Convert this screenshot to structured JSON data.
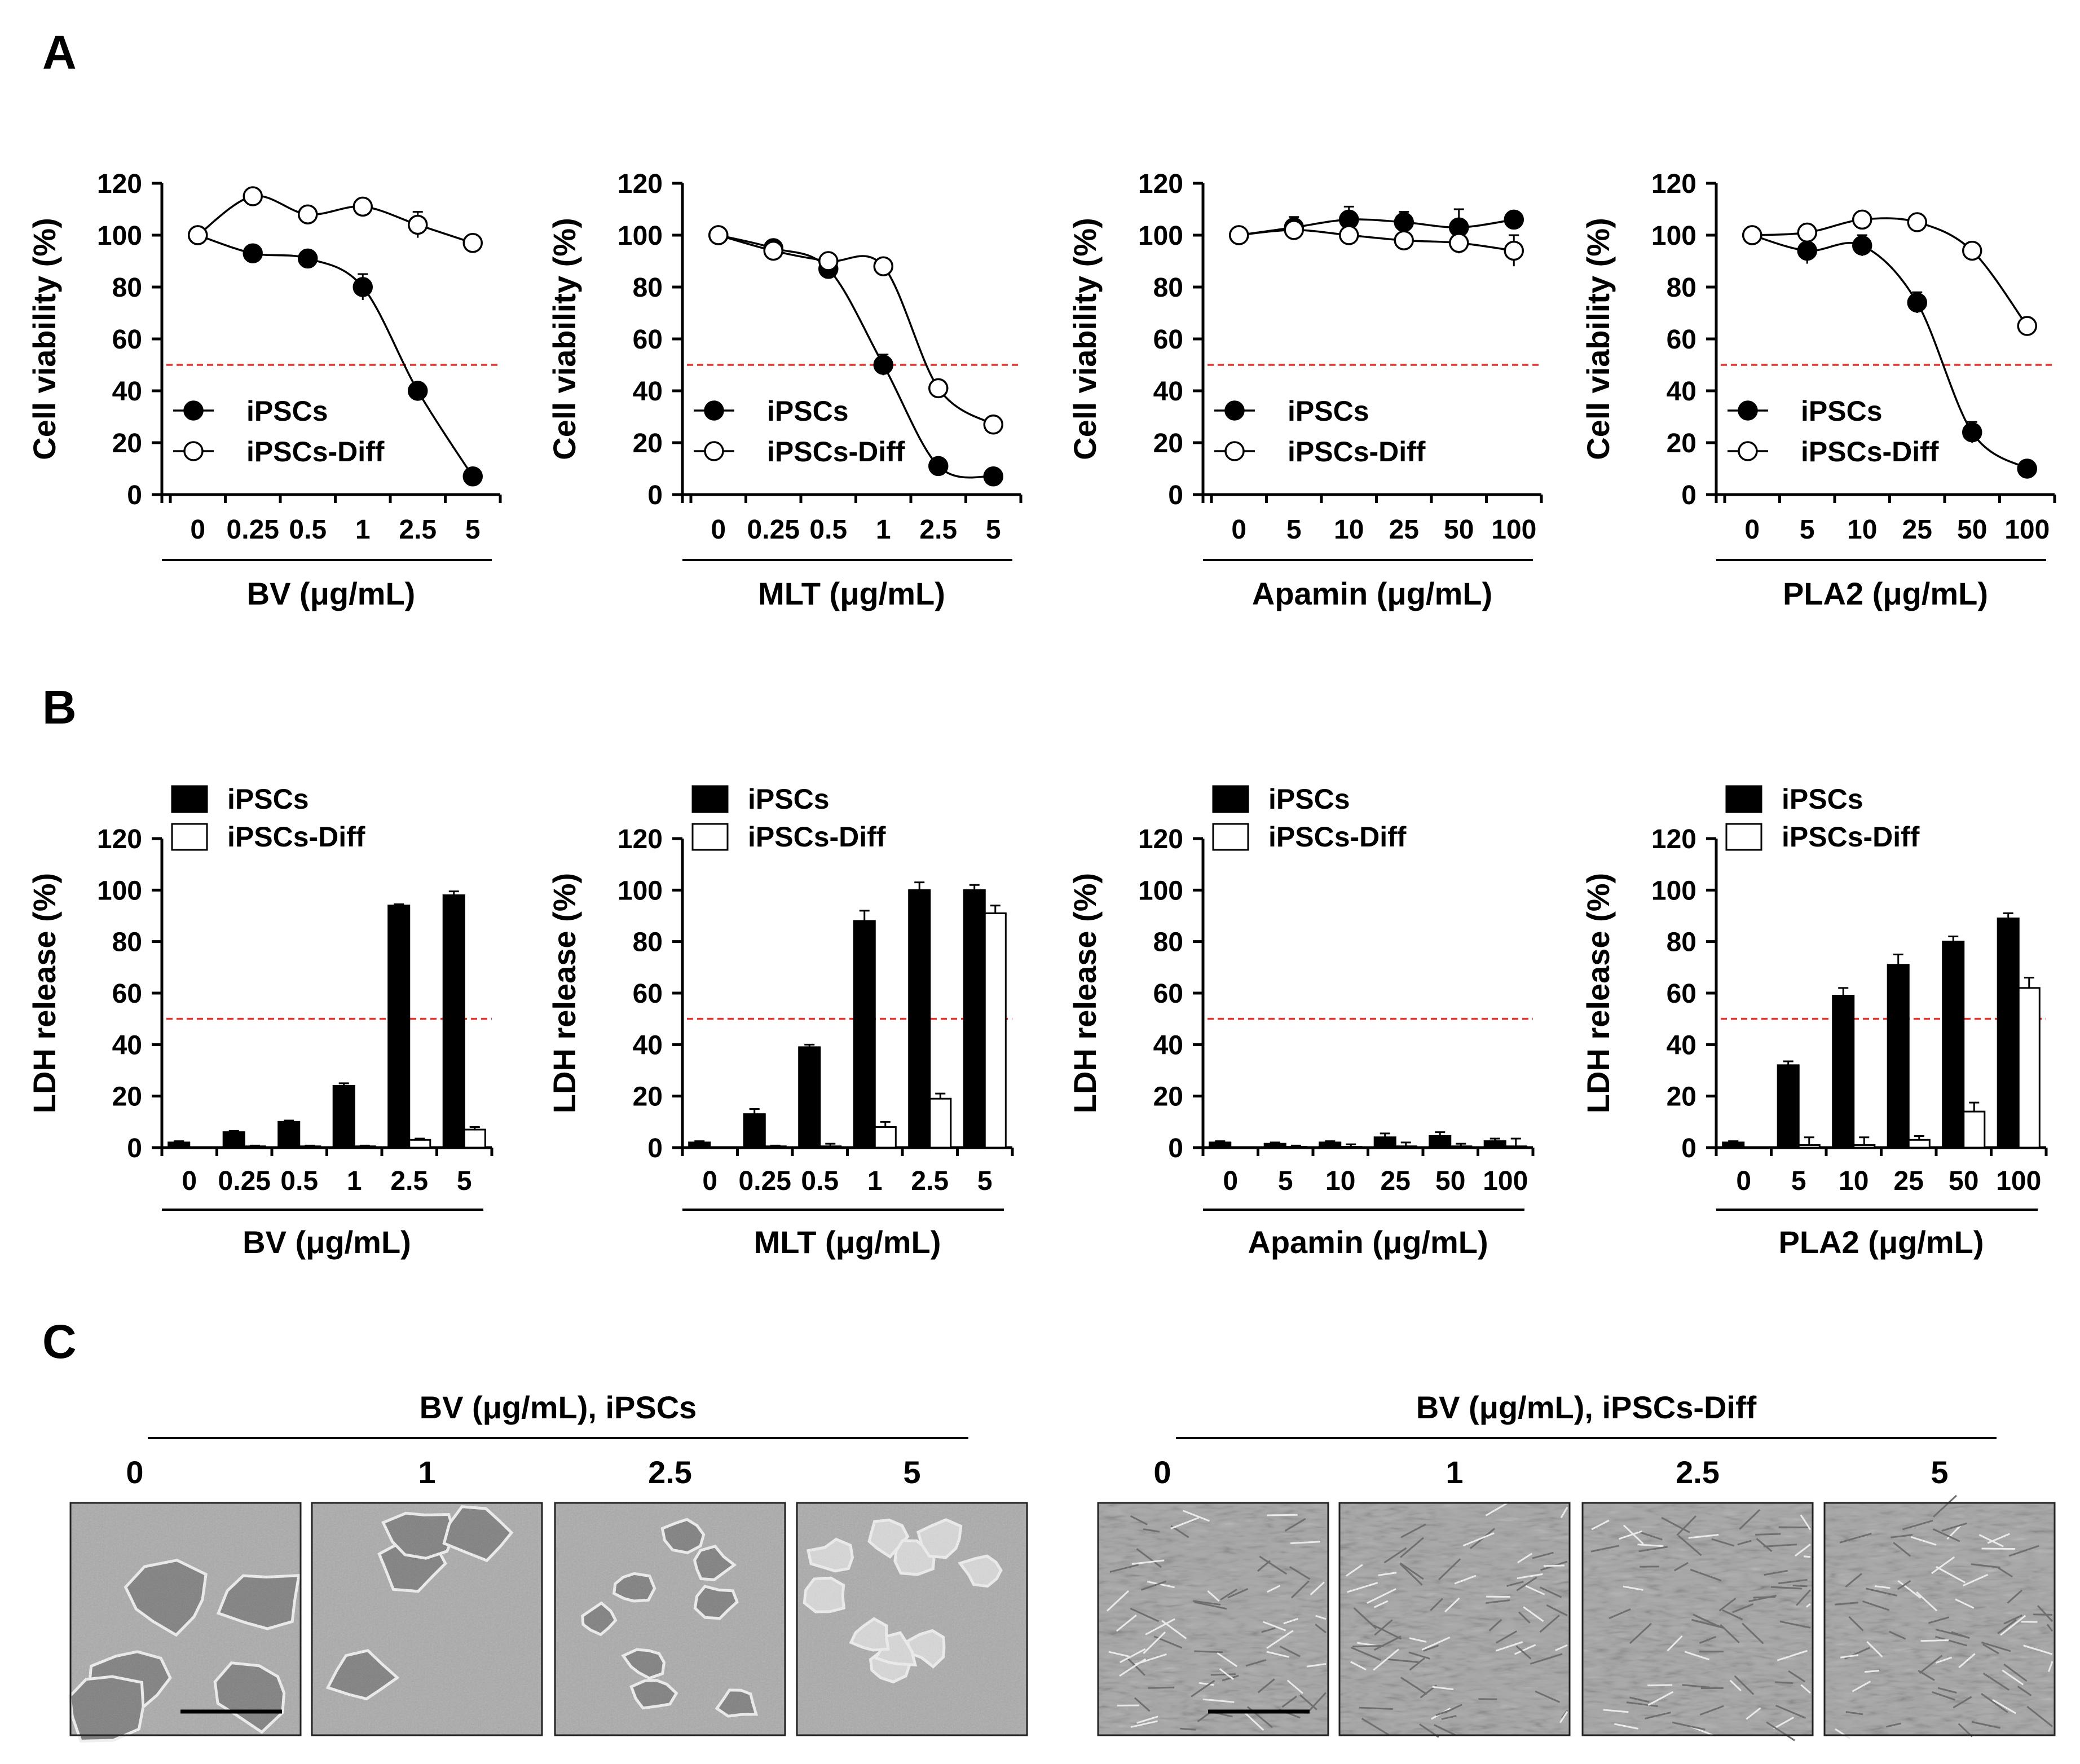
{
  "panel_labels": {
    "a": "A",
    "b": "B",
    "c": "C"
  },
  "chart_data": [
    {
      "id": "a1",
      "type": "line",
      "ylabel": "Cell viability (%)",
      "xlabel": "BV (μg/mL)",
      "categories": [
        "0",
        "0.25",
        "0.5",
        "1",
        "2.5",
        "5"
      ],
      "ylim": [
        0,
        120
      ],
      "yticks": [
        0,
        20,
        40,
        60,
        80,
        100,
        120
      ],
      "threshold": 50,
      "legend_position": "lower-left",
      "series": [
        {
          "name": "iPSCs",
          "marker": "filled",
          "values": [
            100,
            93,
            91,
            80,
            40,
            7
          ],
          "errors": [
            0,
            2,
            2,
            5,
            3,
            1
          ]
        },
        {
          "name": "iPSCs-Diff",
          "marker": "open",
          "values": [
            100,
            115,
            108,
            111,
            104,
            97
          ],
          "errors": [
            0,
            2,
            2,
            2,
            5,
            2
          ]
        }
      ]
    },
    {
      "id": "a2",
      "type": "line",
      "ylabel": "Cell viability (%)",
      "xlabel": "MLT (μg/mL)",
      "categories": [
        "0",
        "0.25",
        "0.5",
        "1",
        "2.5",
        "5"
      ],
      "ylim": [
        0,
        120
      ],
      "yticks": [
        0,
        20,
        40,
        60,
        80,
        100,
        120
      ],
      "threshold": 50,
      "legend_position": "lower-left",
      "series": [
        {
          "name": "iPSCs",
          "marker": "filled",
          "values": [
            100,
            95,
            87,
            50,
            11,
            7
          ],
          "errors": [
            0,
            2,
            2,
            4,
            2,
            1
          ]
        },
        {
          "name": "iPSCs-Diff",
          "marker": "open",
          "values": [
            100,
            94,
            90,
            88,
            41,
            27
          ],
          "errors": [
            0,
            2,
            2,
            2,
            2,
            2
          ]
        }
      ]
    },
    {
      "id": "a3",
      "type": "line",
      "ylabel": "Cell viability (%)",
      "xlabel": "Apamin (μg/mL)",
      "categories": [
        "0",
        "5",
        "10",
        "25",
        "50",
        "100"
      ],
      "ylim": [
        0,
        120
      ],
      "yticks": [
        0,
        20,
        40,
        60,
        80,
        100,
        120
      ],
      "threshold": 50,
      "legend_position": "lower-left",
      "series": [
        {
          "name": "iPSCs",
          "marker": "filled",
          "values": [
            100,
            103,
            106,
            105,
            103,
            106
          ],
          "errors": [
            0,
            4,
            5,
            4,
            7,
            2
          ]
        },
        {
          "name": "iPSCs-Diff",
          "marker": "open",
          "values": [
            100,
            102,
            100,
            98,
            97,
            94
          ],
          "errors": [
            0,
            3,
            3,
            2,
            4,
            6
          ]
        }
      ]
    },
    {
      "id": "a4",
      "type": "line",
      "ylabel": "Cell viability (%)",
      "xlabel": "PLA2 (μg/mL)",
      "categories": [
        "0",
        "5",
        "10",
        "25",
        "50",
        "100"
      ],
      "ylim": [
        0,
        120
      ],
      "yticks": [
        0,
        20,
        40,
        60,
        80,
        100,
        120
      ],
      "threshold": 50,
      "legend_position": "lower-left",
      "series": [
        {
          "name": "iPSCs",
          "marker": "filled",
          "values": [
            100,
            94,
            96,
            74,
            24,
            10
          ],
          "errors": [
            0,
            5,
            4,
            4,
            4,
            2
          ]
        },
        {
          "name": "iPSCs-Diff",
          "marker": "open",
          "values": [
            100,
            101,
            106,
            105,
            94,
            65
          ],
          "errors": [
            0,
            2,
            2,
            2,
            2,
            2
          ]
        }
      ]
    },
    {
      "id": "b1",
      "type": "bar",
      "ylabel": "LDH release (%)",
      "xlabel": "BV (μg/mL)",
      "categories": [
        "0",
        "0.25",
        "0.5",
        "1",
        "2.5",
        "5"
      ],
      "ylim": [
        0,
        120
      ],
      "yticks": [
        0,
        20,
        40,
        60,
        80,
        100,
        120
      ],
      "threshold": 50,
      "legend_position": "top-left",
      "series": [
        {
          "name": "iPSCs",
          "fill": "black",
          "values": [
            2,
            6,
            10,
            24,
            94,
            98
          ],
          "errors": [
            0.5,
            0.5,
            0.5,
            1,
            0.5,
            1.5
          ]
        },
        {
          "name": "iPSCs-Diff",
          "fill": "white",
          "values": [
            0,
            0.5,
            0.5,
            0.5,
            3,
            7
          ],
          "errors": [
            0,
            0.3,
            0.3,
            0.3,
            0.5,
            1
          ]
        }
      ]
    },
    {
      "id": "b2",
      "type": "bar",
      "ylabel": "LDH release (%)",
      "xlabel": "MLT (μg/mL)",
      "categories": [
        "0",
        "0.25",
        "0.5",
        "1",
        "2.5",
        "5"
      ],
      "ylim": [
        0,
        120
      ],
      "yticks": [
        0,
        20,
        40,
        60,
        80,
        100,
        120
      ],
      "threshold": 50,
      "legend_position": "top-left",
      "series": [
        {
          "name": "iPSCs",
          "fill": "black",
          "values": [
            2,
            13,
            39,
            88,
            100,
            100
          ],
          "errors": [
            0.5,
            2,
            1,
            4,
            3,
            2
          ]
        },
        {
          "name": "iPSCs-Diff",
          "fill": "white",
          "values": [
            0,
            0.5,
            0.5,
            8,
            19,
            91
          ],
          "errors": [
            0,
            0.3,
            1,
            2,
            2,
            3
          ]
        }
      ]
    },
    {
      "id": "b3",
      "type": "bar",
      "ylabel": "LDH release (%)",
      "xlabel": "Apamin (μg/mL)",
      "categories": [
        "0",
        "5",
        "10",
        "25",
        "50",
        "100"
      ],
      "ylim": [
        0,
        120
      ],
      "yticks": [
        0,
        20,
        40,
        60,
        80,
        100,
        120
      ],
      "threshold": 50,
      "legend_position": "top-left",
      "series": [
        {
          "name": "iPSCs",
          "fill": "black",
          "values": [
            2,
            1.5,
            2,
            4,
            4.5,
            2.5
          ],
          "errors": [
            0.5,
            0.5,
            0.5,
            1.5,
            1.5,
            1
          ]
        },
        {
          "name": "iPSCs-Diff",
          "fill": "white",
          "values": [
            0,
            0.3,
            0.3,
            0.5,
            0.5,
            0.5
          ],
          "errors": [
            0,
            0.5,
            1,
            1.5,
            1,
            3
          ]
        }
      ]
    },
    {
      "id": "b4",
      "type": "bar",
      "ylabel": "LDH release (%)",
      "xlabel": "PLA2 (μg/mL)",
      "categories": [
        "0",
        "5",
        "10",
        "25",
        "50",
        "100"
      ],
      "ylim": [
        0,
        120
      ],
      "yticks": [
        0,
        20,
        40,
        60,
        80,
        100,
        120
      ],
      "threshold": 50,
      "legend_position": "top-left",
      "series": [
        {
          "name": "iPSCs",
          "fill": "black",
          "values": [
            2,
            32,
            59,
            71,
            80,
            89
          ],
          "errors": [
            0.5,
            1.5,
            3,
            4,
            2,
            2
          ]
        },
        {
          "name": "iPSCs-Diff",
          "fill": "white",
          "values": [
            0,
            1,
            1,
            3,
            14,
            62
          ],
          "errors": [
            0,
            3,
            3,
            1.5,
            3.5,
            4
          ]
        }
      ]
    }
  ],
  "panel_c": {
    "groups": [
      {
        "title": "BV (μg/mL), iPSCs",
        "doses": [
          "0",
          "1",
          "2.5",
          "5"
        ],
        "image_kind": "colonies",
        "colony_counts": [
          5,
          4,
          8,
          10
        ]
      },
      {
        "title": "BV (μg/mL), iPSCs-Diff",
        "doses": [
          "0",
          "1",
          "2.5",
          "5"
        ],
        "image_kind": "fibroblast-like",
        "colony_counts": [
          0,
          0,
          0,
          0
        ]
      }
    ]
  },
  "colors": {
    "threshold": "#e8332a",
    "micrograph_bg": "#a9a9a9",
    "axis": "#000000"
  }
}
